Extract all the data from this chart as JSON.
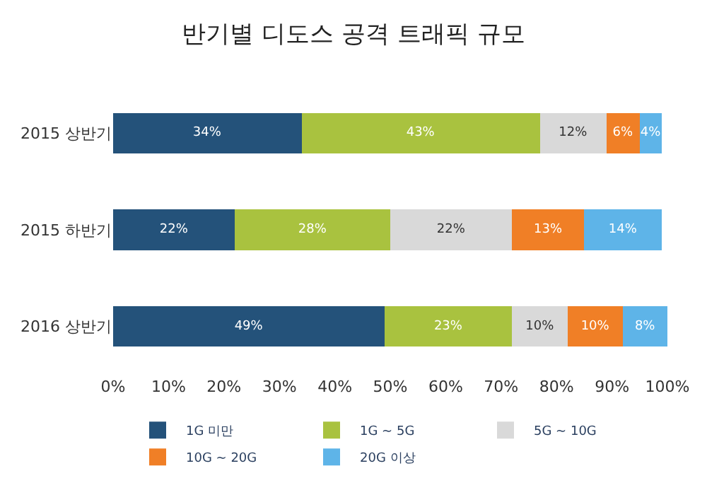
{
  "chart_data": {
    "type": "bar",
    "title": "반기별 디도스 공격 트래픽 규모",
    "orientation": "horizontal",
    "stacked": true,
    "categories": [
      "2015 상반기",
      "2015 하반기",
      "2016 상반기"
    ],
    "series": [
      {
        "name": "1G 미만",
        "color": "#24527a",
        "values": [
          34,
          22,
          49
        ],
        "value_labels": [
          "34%",
          "22%",
          "49%"
        ]
      },
      {
        "name": "1G ~ 5G",
        "color": "#a9c23f",
        "values": [
          43,
          28,
          23
        ],
        "value_labels": [
          "43%",
          "28%",
          "23%"
        ]
      },
      {
        "name": "5G ~ 10G",
        "color": "#d9d9d9",
        "values": [
          12,
          22,
          10
        ],
        "value_labels": [
          "12%",
          "22%",
          "10%"
        ]
      },
      {
        "name": "10G ~ 20G",
        "color": "#f07f26",
        "values": [
          6,
          13,
          10
        ],
        "value_labels": [
          "6%",
          "13%",
          "10%"
        ]
      },
      {
        "name": "20G 이상",
        "color": "#5eb4e8",
        "values": [
          4,
          14,
          8
        ],
        "value_labels": [
          "4%",
          "14%",
          "8%"
        ]
      }
    ],
    "xlim": [
      0,
      100
    ],
    "xticks": [
      {
        "value": 0,
        "label": "0%"
      },
      {
        "value": 10,
        "label": "10%"
      },
      {
        "value": 20,
        "label": "20%"
      },
      {
        "value": 30,
        "label": "30%"
      },
      {
        "value": 40,
        "label": "40%"
      },
      {
        "value": 50,
        "label": "50%"
      },
      {
        "value": 60,
        "label": "60%"
      },
      {
        "value": 70,
        "label": "70%"
      },
      {
        "value": 80,
        "label": "80%"
      },
      {
        "value": 90,
        "label": "90%"
      },
      {
        "value": 100,
        "label": "100%"
      }
    ],
    "legend": "bottom"
  }
}
